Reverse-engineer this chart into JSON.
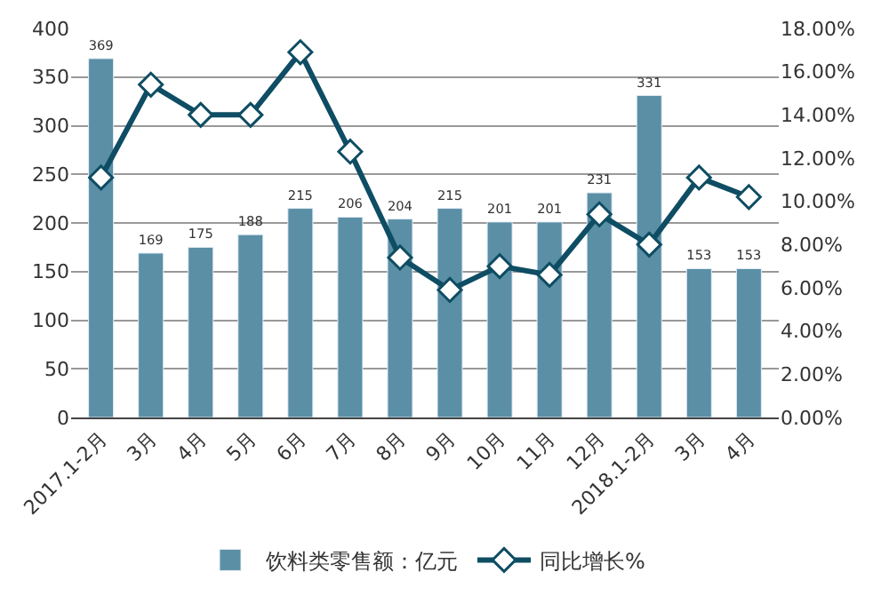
{
  "chart_data": {
    "type": "bar",
    "categories": [
      "2017.1-2月",
      "3月",
      "4月",
      "5月",
      "6月",
      "7月",
      "8月",
      "9月",
      "10月",
      "11月",
      "12月",
      "2018.1-2月",
      "3月",
      "4月"
    ],
    "series": [
      {
        "name": "饮料类零售额：亿元",
        "color": "#5a8fa6",
        "values": [
          369,
          169,
          175,
          188,
          215,
          206,
          204,
          215,
          201,
          201,
          231,
          331,
          153,
          153
        ],
        "value_labels": [
          "369",
          "169",
          "175",
          "188",
          "215",
          "206",
          "204",
          "215",
          "201",
          "201",
          "231",
          "331",
          "153",
          "153"
        ]
      },
      {
        "name": "同比增长%",
        "type": "line",
        "axis": "y2",
        "color": "#0e4d63",
        "marker": "diamond",
        "values": [
          11.1,
          15.4,
          14.0,
          14.0,
          16.9,
          12.3,
          7.4,
          5.9,
          7.0,
          6.6,
          9.4,
          8.0,
          11.1,
          10.2
        ]
      }
    ],
    "ylim": [
      0,
      400
    ],
    "yticks": [
      0,
      50,
      100,
      150,
      200,
      250,
      300,
      350,
      400
    ],
    "y2lim": [
      0,
      18
    ],
    "y2ticks": [
      {
        "value": 0,
        "label": "0.00%"
      },
      {
        "value": 2,
        "label": "2.00%"
      },
      {
        "value": 4,
        "label": "4.00%"
      },
      {
        "value": 6,
        "label": "6.00%"
      },
      {
        "value": 8,
        "label": "8.00%"
      },
      {
        "value": 10,
        "label": "10.00%"
      },
      {
        "value": 12,
        "label": "12.00%"
      },
      {
        "value": 14,
        "label": "14.00%"
      },
      {
        "value": 16,
        "label": "16.00%"
      },
      {
        "value": 18,
        "label": "18.00%"
      }
    ],
    "grid": "y",
    "legend": "bottom"
  }
}
